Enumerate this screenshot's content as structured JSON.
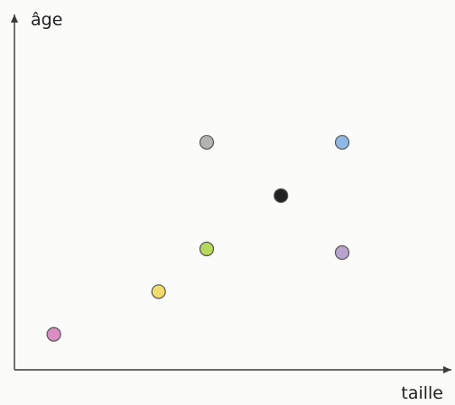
{
  "chart_data": {
    "type": "scatter",
    "xlabel": "taille",
    "ylabel": "âge",
    "xlim": [
      0,
      10
    ],
    "ylim": [
      0,
      10
    ],
    "grid": false,
    "points": [
      {
        "x": 0.9,
        "y": 1.0,
        "color": "#d98fc4"
      },
      {
        "x": 3.3,
        "y": 2.2,
        "color": "#f0dc6a"
      },
      {
        "x": 4.4,
        "y": 3.4,
        "color": "#b5d95a"
      },
      {
        "x": 4.4,
        "y": 6.4,
        "color": "#b3b3b3"
      },
      {
        "x": 6.1,
        "y": 4.9,
        "color": "#222222"
      },
      {
        "x": 7.5,
        "y": 6.4,
        "color": "#8fb9e4"
      },
      {
        "x": 7.5,
        "y": 3.3,
        "color": "#b9a3cf"
      }
    ]
  }
}
